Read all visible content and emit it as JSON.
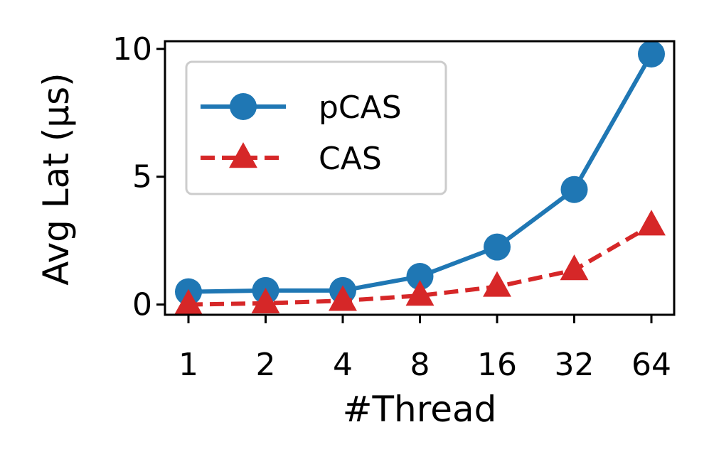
{
  "chart_data": {
    "type": "line",
    "xlabel": "#Thread",
    "ylabel": "Avg Lat (μs)",
    "categories": [
      "1",
      "2",
      "4",
      "8",
      "16",
      "32",
      "64"
    ],
    "yticks": [
      "0",
      "5",
      "10"
    ],
    "ylim": [
      -0.4,
      10.3
    ],
    "grid": false,
    "legend": "top-left",
    "series": [
      {
        "name": "pCAS",
        "color": "#1f77b4",
        "marker": "circle",
        "linestyle": "solid",
        "values": [
          0.5,
          0.55,
          0.55,
          1.1,
          2.25,
          4.5,
          9.8
        ]
      },
      {
        "name": "CAS",
        "color": "#d62728",
        "marker": "triangle",
        "linestyle": "dashed",
        "values": [
          0.0,
          0.05,
          0.15,
          0.35,
          0.7,
          1.35,
          3.1
        ]
      }
    ]
  }
}
